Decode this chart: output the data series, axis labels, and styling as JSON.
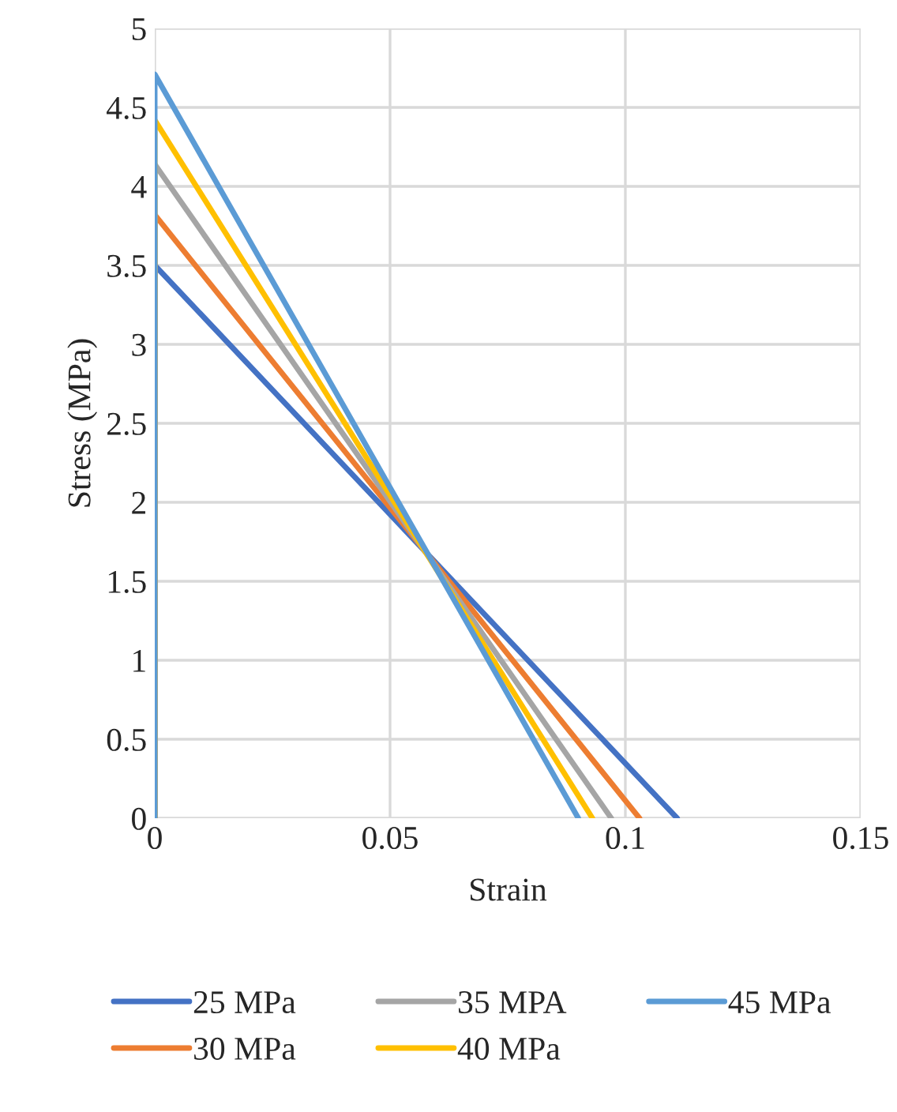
{
  "chart_data": {
    "type": "line",
    "xlabel": "Strain",
    "ylabel": "Stress (MPa)",
    "xlim": [
      0,
      0.15
    ],
    "xticks": [
      {
        "value": 0,
        "label": "0"
      },
      0.05,
      0.1,
      0.15
    ],
    "ylim": [
      0,
      5
    ],
    "yticks": [
      0,
      0.5,
      1,
      1.5,
      2,
      2.5,
      3,
      3.5,
      4,
      4.5,
      5
    ],
    "grid": true,
    "legend": "bottom",
    "marker": "none",
    "line_style": "solid",
    "series": [
      {
        "name": "25 MPa",
        "color": "#4472c4",
        "x": [
          0,
          0,
          0.111
        ],
        "values": [
          0,
          3.5,
          0
        ]
      },
      {
        "name": "30 MPa",
        "color": "#ed7d31",
        "x": [
          0,
          0,
          0.103
        ],
        "values": [
          0,
          3.82,
          0
        ]
      },
      {
        "name": "35 MPA",
        "color": "#a5a5a5",
        "x": [
          0,
          0,
          0.097
        ],
        "values": [
          0,
          4.14,
          0
        ]
      },
      {
        "name": "40 MPa",
        "color": "#ffc000",
        "x": [
          0,
          0,
          0.093
        ],
        "values": [
          0,
          4.42,
          0
        ]
      },
      {
        "name": "45 MPa",
        "color": "#5b9bd5",
        "x": [
          0,
          0,
          0.09
        ],
        "values": [
          0,
          4.71,
          0
        ]
      }
    ]
  }
}
